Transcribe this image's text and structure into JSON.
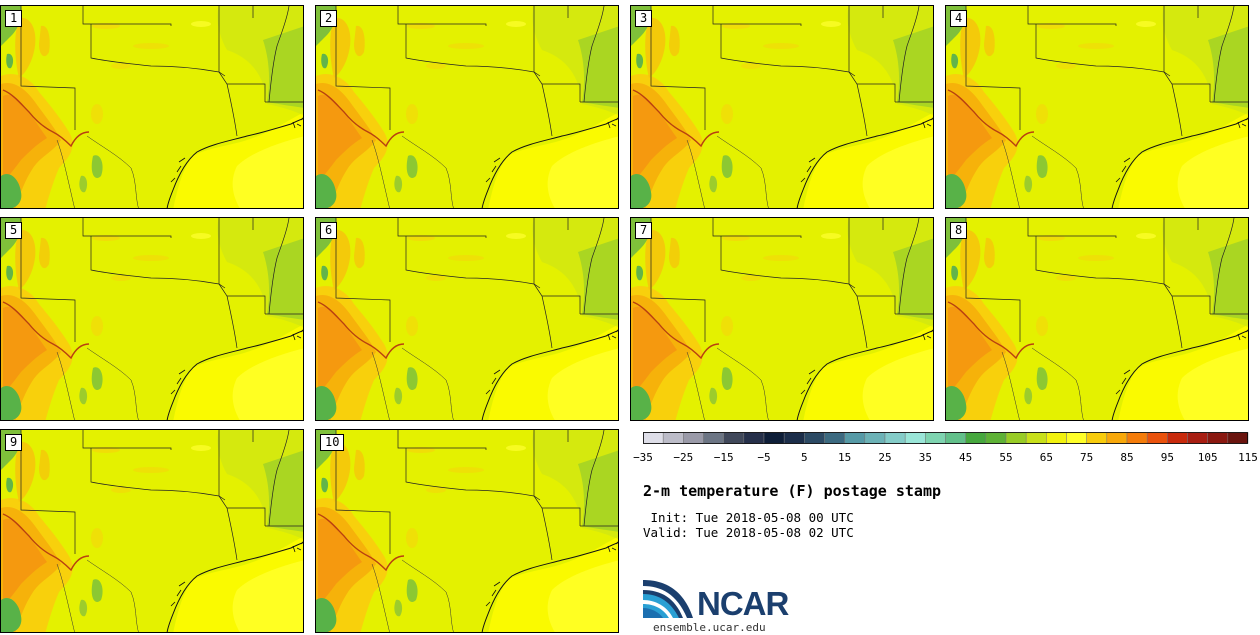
{
  "panels": [
    {
      "label": "1"
    },
    {
      "label": "2"
    },
    {
      "label": "3"
    },
    {
      "label": "4"
    },
    {
      "label": "5"
    },
    {
      "label": "6"
    },
    {
      "label": "7"
    },
    {
      "label": "8"
    },
    {
      "label": "9"
    },
    {
      "label": "10"
    }
  ],
  "colorbar": {
    "colors": [
      "#dedee8",
      "#bcbcc8",
      "#9a9aa8",
      "#6c7584",
      "#40485a",
      "#26304a",
      "#0e1e38",
      "#1c2e4a",
      "#2c4a64",
      "#3c6a80",
      "#569aa6",
      "#6cb2b6",
      "#84ccc8",
      "#9ae6d8",
      "#7ed4b0",
      "#62c08a",
      "#46a83e",
      "#5eb236",
      "#98cc26",
      "#c8e01a",
      "#f2f20e",
      "#ffff28",
      "#f8cc0c",
      "#f8a80a",
      "#f47c0a",
      "#ea520c",
      "#c82a0c",
      "#a81e12",
      "#8a1810",
      "#6a140e"
    ],
    "tick_labels": [
      "−35",
      "−25",
      "−15",
      "−5",
      "5",
      "15",
      "25",
      "35",
      "45",
      "55",
      "65",
      "75",
      "85",
      "95",
      "105",
      "115"
    ]
  },
  "title": "2-m temperature (F) postage stamp",
  "init_line": " Init: Tue 2018-05-08 00 UTC",
  "valid_line": "Valid: Tue 2018-05-08 02 UTC",
  "logo": {
    "name": "NCAR",
    "url": "ensemble.ucar.edu"
  }
}
